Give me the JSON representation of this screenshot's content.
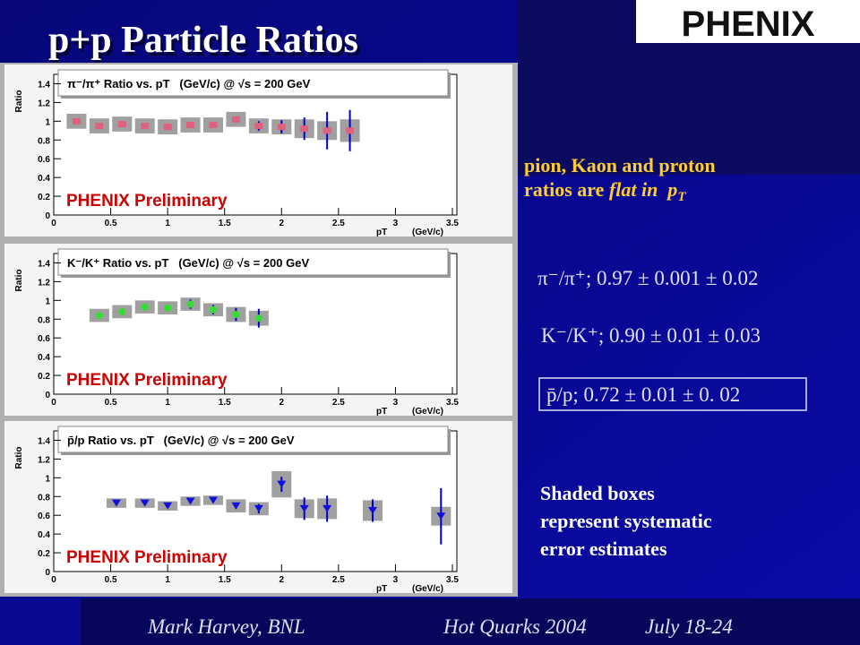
{
  "slide": {
    "title": "p+p Particle Ratios",
    "logo": "PHENIX",
    "summary_line1": "pion, Kaon and proton",
    "summary_line2a": "ratios are ",
    "summary_line2b": "flat in  p",
    "summary_line2c": "T",
    "result1": "π⁻/π⁺; 0.97 ± 0.001 ± 0.02",
    "result2": "K⁻/K⁺; 0.90 ± 0.01 ± 0.03",
    "result3": "p̄/p; 0.72 ± 0.01 ± 0. 02",
    "note_lines": [
      "Shaded boxes",
      "represent systematic",
      "error estimates"
    ],
    "footer_author": "Mark Harvey, BNL",
    "footer_event": "Hot Quarks 2004",
    "footer_date": "July 18-24"
  },
  "chart_data": [
    {
      "type": "scatter",
      "title": "π⁻/π⁺ Ratio vs. pT   (GeV/c) @ √s = 200 GeV",
      "x_label": "pT",
      "x_unit": "(GeV/c)",
      "y_label": "Ratio",
      "annotation": "PHENIX Preliminary",
      "x": [
        0.2,
        0.4,
        0.6,
        0.8,
        1.0,
        1.2,
        1.4,
        1.6,
        1.8,
        2.0,
        2.2,
        2.4,
        2.6
      ],
      "values": [
        1.0,
        0.95,
        0.97,
        0.95,
        0.94,
        0.96,
        0.96,
        1.02,
        0.95,
        0.94,
        0.92,
        0.9,
        0.9
      ],
      "errors": [
        0.01,
        0.01,
        0.01,
        0.01,
        0.01,
        0.01,
        0.01,
        0.03,
        0.05,
        0.07,
        0.12,
        0.2,
        0.22
      ],
      "sys_errors": [
        0.08,
        0.08,
        0.08,
        0.08,
        0.08,
        0.08,
        0.08,
        0.08,
        0.08,
        0.08,
        0.1,
        0.1,
        0.12
      ],
      "color": "#e0607f",
      "marker": "square",
      "xlim": [
        0,
        3.5
      ],
      "ylim": [
        0,
        1.5
      ],
      "xticks": [
        0,
        0.5,
        1,
        1.5,
        2,
        2.5,
        3,
        3.5
      ],
      "yticks": [
        0,
        0.2,
        0.4,
        0.6,
        0.8,
        1,
        1.2,
        1.4
      ]
    },
    {
      "type": "scatter",
      "title": "K⁻/K⁺ Ratio vs. pT   (GeV/c) @ √s = 200 GeV",
      "x_label": "pT",
      "x_unit": "(GeV/c)",
      "y_label": "Ratio",
      "annotation": "PHENIX Preliminary",
      "x": [
        0.4,
        0.6,
        0.8,
        1.0,
        1.2,
        1.4,
        1.6,
        1.8
      ],
      "values": [
        0.84,
        0.88,
        0.93,
        0.92,
        0.96,
        0.9,
        0.85,
        0.81
      ],
      "errors": [
        0.01,
        0.01,
        0.01,
        0.02,
        0.05,
        0.05,
        0.07,
        0.1
      ],
      "sys_errors": [
        0.07,
        0.07,
        0.07,
        0.07,
        0.07,
        0.07,
        0.08,
        0.08
      ],
      "color": "#33dd33",
      "marker": "circle",
      "xlim": [
        0,
        3.5
      ],
      "ylim": [
        0,
        1.5
      ],
      "xticks": [
        0,
        0.5,
        1,
        1.5,
        2,
        2.5,
        3,
        3.5
      ],
      "yticks": [
        0,
        0.2,
        0.4,
        0.6,
        0.8,
        1,
        1.2,
        1.4
      ]
    },
    {
      "type": "scatter",
      "title": "p̄/p Ratio vs. pT   (GeV/c) @ √s = 200 GeV",
      "x_label": "pT",
      "x_unit": "(GeV/c)",
      "y_label": "Ratio",
      "annotation": "PHENIX Preliminary",
      "x": [
        0.55,
        0.8,
        1.0,
        1.2,
        1.4,
        1.6,
        1.8,
        2.0,
        2.2,
        2.4,
        2.8,
        3.4
      ],
      "values": [
        0.73,
        0.73,
        0.7,
        0.75,
        0.76,
        0.7,
        0.67,
        0.93,
        0.67,
        0.67,
        0.65,
        0.59
      ],
      "errors": [
        0.01,
        0.01,
        0.01,
        0.01,
        0.01,
        0.03,
        0.05,
        0.08,
        0.12,
        0.14,
        0.12,
        0.3
      ],
      "sys_errors": [
        0.05,
        0.05,
        0.05,
        0.05,
        0.05,
        0.07,
        0.07,
        0.14,
        0.1,
        0.11,
        0.11,
        0.1
      ],
      "color": "#1010dd",
      "marker": "triangle",
      "xlim": [
        0,
        3.5
      ],
      "ylim": [
        0,
        1.5
      ],
      "xticks": [
        0,
        0.5,
        1,
        1.5,
        2,
        2.5,
        3,
        3.5
      ],
      "yticks": [
        0,
        0.2,
        0.4,
        0.6,
        0.8,
        1,
        1.2,
        1.4
      ]
    }
  ]
}
